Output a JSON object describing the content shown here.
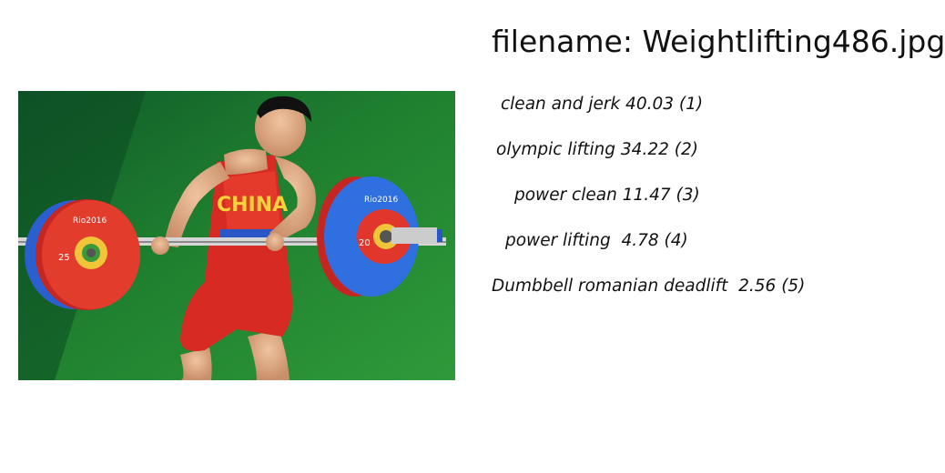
{
  "header": {
    "filename_text": "filename: Weightlifting486.jpg"
  },
  "image": {
    "subject": "weightlifter-photo",
    "plate_text": "Rio2016",
    "singlet_text": "CHINA",
    "plate_numbers": [
      "25",
      "20"
    ]
  },
  "predictions": [
    {
      "text": "clean and jerk 40.03 (1)"
    },
    {
      "text": "olympic lifting 34.22 (2)"
    },
    {
      "text": "power clean 11.47 (3)"
    },
    {
      "text": "power lifting  4.78 (4)"
    },
    {
      "text": "Dumbbell romanian deadlift  2.56 (5)"
    }
  ]
}
